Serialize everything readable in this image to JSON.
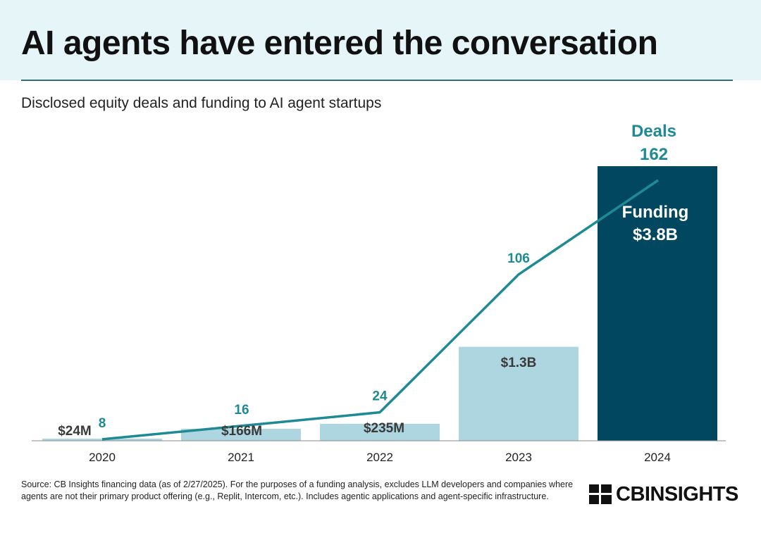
{
  "header": {
    "title": "AI agents have entered the conversation"
  },
  "subtitle": "Disclosed equity deals and funding to AI agent startups",
  "chart_data": {
    "type": "bar",
    "categories": [
      "2020",
      "2021",
      "2022",
      "2023",
      "2024"
    ],
    "series": [
      {
        "name": "Funding",
        "kind": "bar",
        "values": [
          0.024,
          0.166,
          0.235,
          1.3,
          3.8
        ],
        "labels": [
          "$24M",
          "$166M",
          "$235M",
          "$1.3B",
          "$3.8B"
        ]
      },
      {
        "name": "Deals",
        "kind": "line",
        "values": [
          8,
          16,
          24,
          106,
          162
        ]
      }
    ],
    "funding_ylim": [
      0,
      3.8
    ],
    "deals_ylim": [
      0,
      162
    ],
    "grid": false,
    "legend": "inline-labels",
    "colors": {
      "bar_light": "#aed6e0",
      "bar_dark": "#00475f",
      "line": "#1e8a94",
      "bar_label": "#3a3a3a",
      "inside_label": "#ffffff"
    }
  },
  "footer": {
    "source": "Source: CB Insights financing data (as of 2/27/2025). For the purposes of a funding analysis, excludes LLM developers and companies where agents are not their primary product offering (e.g., Replit, Intercom, etc.). Includes agentic applications and agent-specific infrastructure.",
    "logo": "CBINSIGHTS"
  }
}
